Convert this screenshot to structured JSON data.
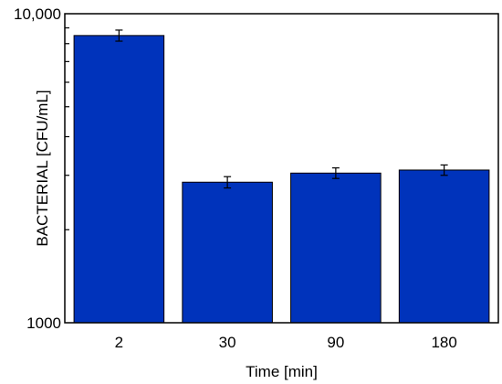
{
  "chart_data": {
    "type": "bar",
    "categories": [
      "2",
      "30",
      "90",
      "180"
    ],
    "values": [
      8500,
      2850,
      3050,
      3120
    ],
    "error": [
      350,
      120,
      120,
      120
    ],
    "title": "",
    "xlabel": "Time [min]",
    "ylabel": "BACTERIAL [CFU/mL]",
    "yscale": "log",
    "ylim": [
      1000,
      10000
    ],
    "ytick_labels": [
      {
        "value": 1000,
        "label": "1000"
      },
      {
        "value": 10000,
        "label": "10,000"
      }
    ],
    "grid": false,
    "legend": "none",
    "bar_color": "#0033BB"
  }
}
